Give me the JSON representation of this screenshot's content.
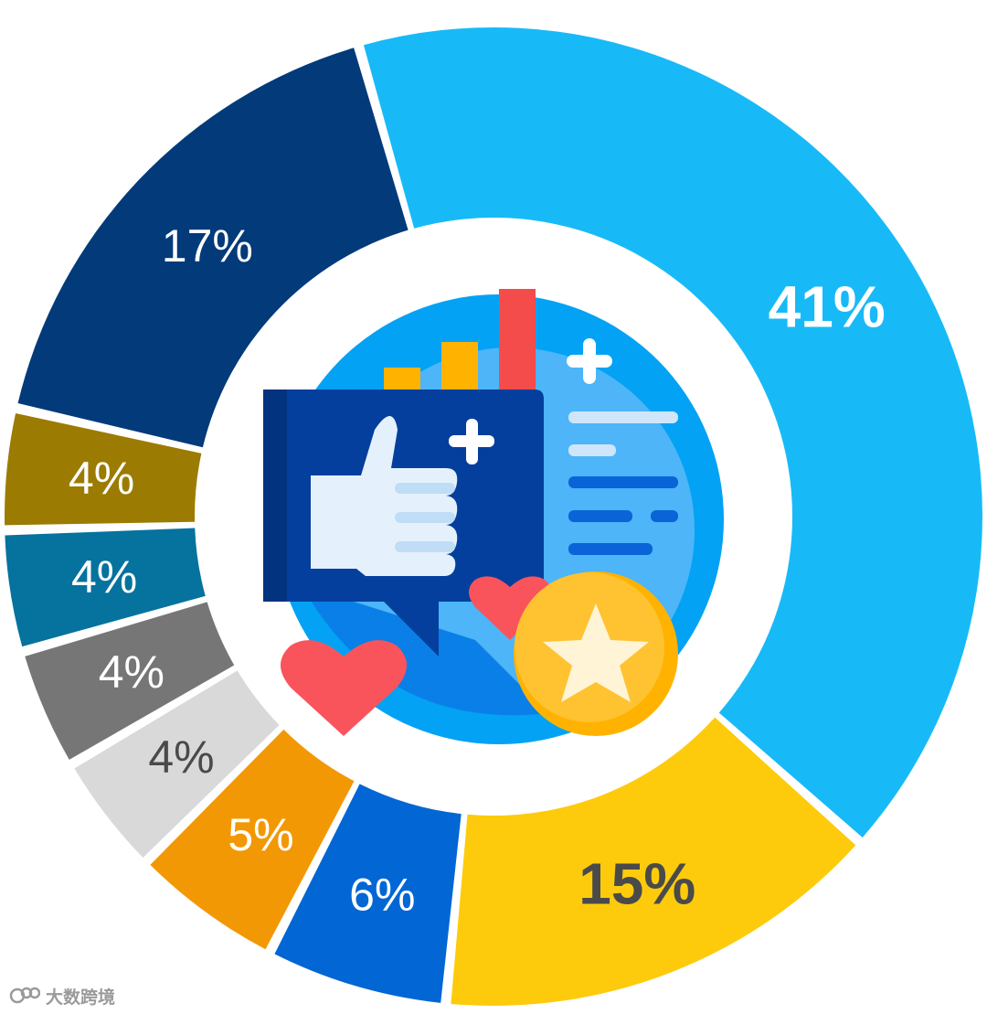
{
  "chart_data": {
    "type": "pie",
    "style": "donut",
    "slices": [
      {
        "value": 41,
        "label": "41%",
        "color": "#17BAF7",
        "text_color": "#ffffff",
        "bold": true
      },
      {
        "value": 15,
        "label": "15%",
        "color": "#FDCB0C",
        "text_color": "#4A4A4A",
        "bold": true
      },
      {
        "value": 6,
        "label": "6%",
        "color": "#0266D4",
        "text_color": "#ffffff",
        "bold": false
      },
      {
        "value": 5,
        "label": "5%",
        "color": "#F29804",
        "text_color": "#ffffff",
        "bold": false
      },
      {
        "value": 4,
        "label": "4%",
        "color": "#D9D9D9",
        "text_color": "#4A4A4A",
        "bold": false
      },
      {
        "value": 4,
        "label": "4%",
        "color": "#767676",
        "text_color": "#ffffff",
        "bold": false
      },
      {
        "value": 4,
        "label": "4%",
        "color": "#06729E",
        "text_color": "#ffffff",
        "bold": false
      },
      {
        "value": 4,
        "label": "4%",
        "color": "#9C7B02",
        "text_color": "#ffffff",
        "bold": false
      },
      {
        "value": 17,
        "label": "17%",
        "color": "#023A7A",
        "text_color": "#ffffff",
        "bold": false
      }
    ]
  },
  "center_graphic": {
    "icon": "thumbs-up-social-feedback-icon"
  },
  "watermark": {
    "text": "大数跨境",
    "icon": "logo-icon"
  }
}
